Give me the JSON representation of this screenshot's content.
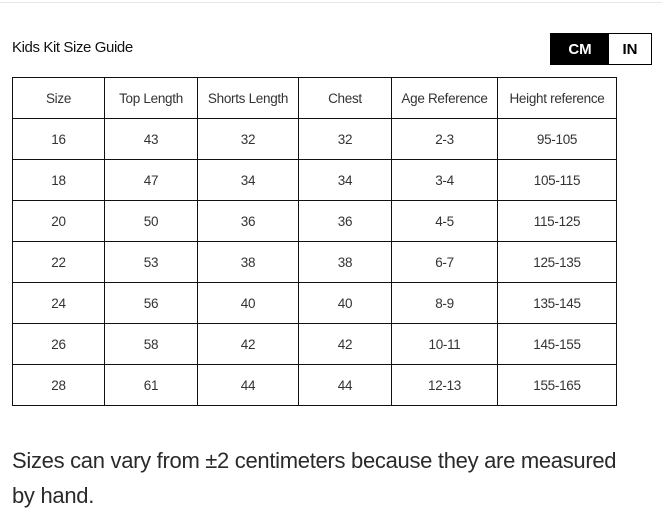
{
  "title": "Kids Kit Size Guide",
  "unit_toggle": {
    "options": [
      "CM",
      "IN"
    ],
    "selected": "CM"
  },
  "table": {
    "headers": [
      "Size",
      "Top Length",
      "Shorts Length",
      "Chest",
      "Age Reference",
      "Height reference"
    ],
    "rows": [
      [
        "16",
        "43",
        "32",
        "32",
        "2-3",
        "95-105"
      ],
      [
        "18",
        "47",
        "34",
        "34",
        "3-4",
        "105-115"
      ],
      [
        "20",
        "50",
        "36",
        "36",
        "4-5",
        "115-125"
      ],
      [
        "22",
        "53",
        "38",
        "38",
        "6-7",
        "125-135"
      ],
      [
        "24",
        "56",
        "40",
        "40",
        "8-9",
        "135-145"
      ],
      [
        "26",
        "58",
        "42",
        "42",
        "10-11",
        "145-155"
      ],
      [
        "28",
        "61",
        "44",
        "44",
        "12-13",
        "155-165"
      ]
    ]
  },
  "note": "Sizes can vary from ±2 centimeters because they are measured by hand."
}
